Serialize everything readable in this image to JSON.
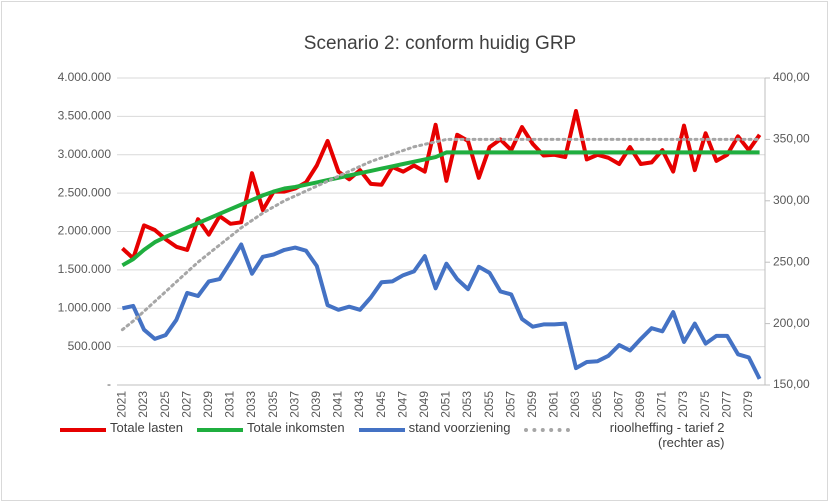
{
  "chart_data": {
    "type": "line",
    "title": "Scenario 2: conform huidig GRP",
    "categories": [
      "2021",
      null,
      "2023",
      null,
      "2025",
      null,
      "2027",
      null,
      "2029",
      null,
      "2031",
      null,
      "2033",
      null,
      "2035",
      null,
      "2037",
      null,
      "2039",
      null,
      "2041",
      null,
      "2043",
      null,
      "2045",
      null,
      "2047",
      null,
      "2049",
      null,
      "2051",
      null,
      "2053",
      null,
      "2055",
      null,
      "2057",
      null,
      "2059",
      null,
      "2061",
      null,
      "2063",
      null,
      "2065",
      null,
      "2067",
      null,
      "2069",
      null,
      "2071",
      null,
      "2073",
      null,
      "2075",
      null,
      "2077",
      null,
      "2079",
      null
    ],
    "ylim": [
      0,
      4000000
    ],
    "yticks": [
      {
        "value": 0,
        "label": "-"
      },
      {
        "value": 500000,
        "label": "500.000"
      },
      {
        "value": 1000000,
        "label": "1.000.000"
      },
      {
        "value": 1500000,
        "label": "1.500.000"
      },
      {
        "value": 2000000,
        "label": "2.000.000"
      },
      {
        "value": 2500000,
        "label": "2.500.000"
      },
      {
        "value": 3000000,
        "label": "3.000.000"
      },
      {
        "value": 3500000,
        "label": "3.500.000"
      },
      {
        "value": 4000000,
        "label": "4.000.000"
      }
    ],
    "y2lim": [
      150,
      400
    ],
    "y2ticks": [
      {
        "value": 150,
        "label": "150,00"
      },
      {
        "value": 200,
        "label": "200,00"
      },
      {
        "value": 250,
        "label": "250,00"
      },
      {
        "value": 300,
        "label": "300,00"
      },
      {
        "value": 350,
        "label": "350,00"
      },
      {
        "value": 400,
        "label": "400,00"
      }
    ],
    "grid": true,
    "legend": "bottom",
    "series": [
      {
        "name": "Totale lasten",
        "color": "#e60000",
        "dash": false,
        "values": [
          1780000,
          1650000,
          2080000,
          2020000,
          1900000,
          1800000,
          1760000,
          2160000,
          1960000,
          2200000,
          2100000,
          2120000,
          2760000,
          2280000,
          2520000,
          2520000,
          2560000,
          2640000,
          2860000,
          3180000,
          2780000,
          2680000,
          2800000,
          2620000,
          2610000,
          2840000,
          2780000,
          2860000,
          2780000,
          3390000,
          2660000,
          3260000,
          3180000,
          2700000,
          3100000,
          3200000,
          3060000,
          3360000,
          3140000,
          2990000,
          3000000,
          2970000,
          3570000,
          2940000,
          3000000,
          2960000,
          2880000,
          3100000,
          2880000,
          2900000,
          3060000,
          2780000,
          3380000,
          2800000,
          3280000,
          2920000,
          3000000,
          3240000,
          3060000,
          3260000
        ]
      },
      {
        "name": "Totale inkomsten",
        "color": "#1fae3f",
        "dash": false,
        "values": [
          1560000,
          1640000,
          1760000,
          1860000,
          1930000,
          1990000,
          2050000,
          2110000,
          2170000,
          2230000,
          2290000,
          2350000,
          2410000,
          2470000,
          2520000,
          2560000,
          2580000,
          2610000,
          2640000,
          2670000,
          2700000,
          2730000,
          2760000,
          2790000,
          2820000,
          2850000,
          2880000,
          2910000,
          2940000,
          2970000,
          3030000,
          3030000,
          3030000,
          3030000,
          3030000,
          3030000,
          3030000,
          3030000,
          3030000,
          3030000,
          3030000,
          3030000,
          3030000,
          3030000,
          3030000,
          3030000,
          3030000,
          3030000,
          3030000,
          3030000,
          3030000,
          3030000,
          3030000,
          3030000,
          3030000,
          3030000,
          3030000,
          3030000,
          3030000,
          3030000
        ]
      },
      {
        "name": "stand voorziening",
        "color": "#4472c4",
        "dash": false,
        "values": [
          1000000,
          1030000,
          720000,
          600000,
          650000,
          850000,
          1200000,
          1160000,
          1350000,
          1380000,
          1600000,
          1830000,
          1450000,
          1670000,
          1700000,
          1760000,
          1790000,
          1750000,
          1550000,
          1040000,
          980000,
          1020000,
          980000,
          1140000,
          1340000,
          1350000,
          1430000,
          1480000,
          1680000,
          1260000,
          1580000,
          1380000,
          1250000,
          1540000,
          1460000,
          1220000,
          1180000,
          860000,
          760000,
          790000,
          790000,
          800000,
          220000,
          300000,
          310000,
          380000,
          520000,
          450000,
          600000,
          740000,
          700000,
          950000,
          560000,
          800000,
          540000,
          640000,
          640000,
          400000,
          360000,
          80000
        ]
      },
      {
        "name": "rioolheffing - tarief 2 (rechter as)",
        "color": "#a6a6a6",
        "dash": true,
        "axis": "y2",
        "values": [
          195,
          202,
          210,
          218,
          226,
          234,
          242,
          250,
          257,
          264,
          271,
          278,
          284,
          290,
          295,
          300,
          304,
          308,
          312,
          316,
          320,
          324,
          328,
          332,
          335,
          338,
          341,
          344,
          346,
          348,
          350,
          350,
          350,
          350,
          350,
          350,
          350,
          350,
          350,
          350,
          350,
          350,
          350,
          350,
          350,
          350,
          350,
          350,
          350,
          350,
          350,
          350,
          350,
          350,
          350,
          350,
          350,
          350,
          350,
          350
        ]
      }
    ]
  }
}
